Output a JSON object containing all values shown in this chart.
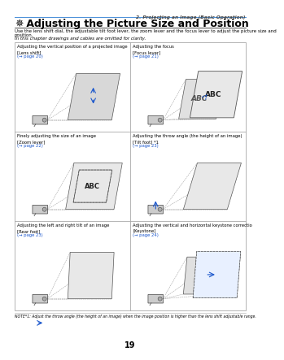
{
  "page_header_right": "2. Projecting an Image (Basic Operation)",
  "title_symbol": "✵",
  "title_text": " Adjusting the Picture Size and Position",
  "intro_line1": "Use the lens shift dial, the adjustable tilt foot lever, the zoom lever and the focus lever to adjust the picture size and",
  "intro_line2": "position.",
  "intro_line3": "In this chapter drawings and cables are omitted for clarity.",
  "cells": [
    {
      "col": 0,
      "row": 0,
      "title": "Adjusting the vertical position of a projected image",
      "subtitle": "[Lens shift]",
      "pageref": "(→ page 20)"
    },
    {
      "col": 1,
      "row": 0,
      "title": "Adjusting the focus",
      "subtitle": "[Focus lever]",
      "pageref": "(→ page 21)"
    },
    {
      "col": 0,
      "row": 1,
      "title": "Finely adjusting the size of an image",
      "subtitle": "[Zoom lever]",
      "pageref": "(→ page 22)"
    },
    {
      "col": 1,
      "row": 1,
      "title": "Adjusting the throw angle (the height of an image)",
      "subtitle": "[Tilt foot] *1",
      "pageref": "(→ page 23)"
    },
    {
      "col": 0,
      "row": 2,
      "title": "Adjusting the left and right tilt of an image",
      "subtitle": "[Rear foot]",
      "pageref": "(→ page 23)"
    },
    {
      "col": 1,
      "row": 2,
      "title": "Adjusting the vertical and horizontal keystone correction",
      "subtitle": "[Keystone]",
      "pageref": "(→ page 24)"
    }
  ],
  "footer_note": "NOTE*1: Adjust the throw angle (the height of an image) when the image position is higher than the lens shift adjustable range.",
  "page_number": "19",
  "header_line_color": "#4a90d9",
  "grid_color": "#aaaaaa",
  "text_color": "#000000",
  "header_text_color": "#444444",
  "ref_color": "#1a56cc",
  "bg_color": "#ffffff",
  "arrow_color": "#1a56cc"
}
